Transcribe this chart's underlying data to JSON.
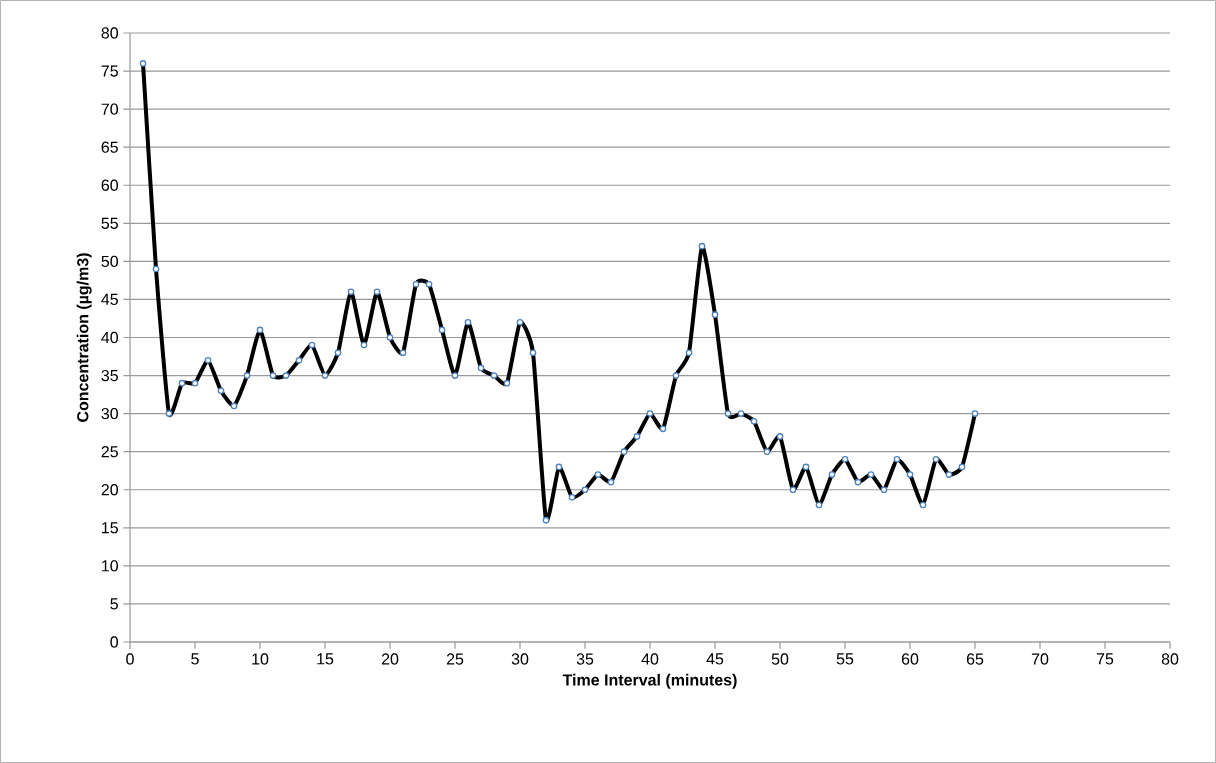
{
  "chart_data": {
    "type": "line",
    "xlabel": "Time Interval (minutes)",
    "ylabel": "Concentration (µg/m3)",
    "x": [
      1,
      2,
      3,
      4,
      5,
      6,
      7,
      8,
      9,
      10,
      11,
      12,
      13,
      14,
      15,
      16,
      17,
      18,
      19,
      20,
      21,
      22,
      23,
      24,
      25,
      26,
      27,
      28,
      29,
      30,
      31,
      32,
      33,
      34,
      35,
      36,
      37,
      38,
      39,
      40,
      41,
      42,
      43,
      44,
      45,
      46,
      47,
      48,
      49,
      50,
      51,
      52,
      53,
      54,
      55,
      56,
      57,
      58,
      59,
      60,
      61,
      62,
      63,
      64,
      65
    ],
    "values": [
      76,
      49,
      30,
      34,
      34,
      37,
      33,
      31,
      35,
      41,
      35,
      35,
      37,
      39,
      35,
      38,
      46,
      39,
      46,
      40,
      38,
      47,
      47,
      41,
      35,
      42,
      36,
      35,
      34,
      42,
      38,
      16,
      23,
      19,
      20,
      22,
      21,
      25,
      27,
      30,
      28,
      35,
      38,
      52,
      43,
      30,
      30,
      29,
      25,
      27,
      20,
      23,
      18,
      22,
      24,
      21,
      22,
      20,
      24,
      22,
      18,
      24,
      22,
      23,
      30
    ],
    "color": "#000000",
    "marker": "circle",
    "line_style": "solid",
    "grid": "y",
    "xlim": [
      0,
      80
    ],
    "xticks": [
      0,
      5,
      10,
      15,
      20,
      25,
      30,
      35,
      40,
      45,
      50,
      55,
      60,
      65,
      70,
      75,
      80
    ],
    "ylim": [
      0,
      80
    ],
    "yticks": [
      0,
      5,
      10,
      15,
      20,
      25,
      30,
      35,
      40,
      45,
      50,
      55,
      60,
      65,
      70,
      75,
      80
    ]
  }
}
